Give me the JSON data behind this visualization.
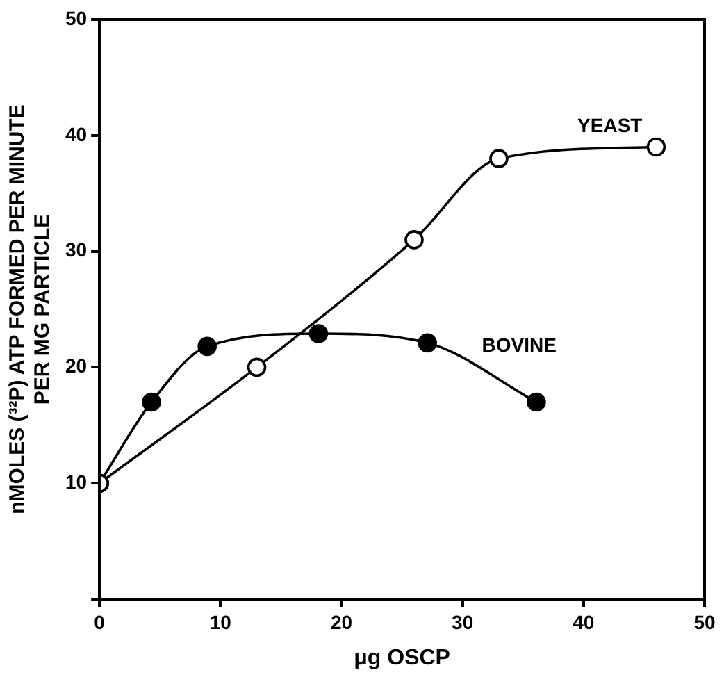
{
  "chart_data": {
    "type": "line",
    "xlabel": "μg OSCP",
    "ylabel": [
      "nMOLES (³²P) ATP FORMED PER MINUTE",
      "PER MG PARTICLE"
    ],
    "xlim": [
      0,
      50
    ],
    "xticks": [
      0,
      10,
      20,
      30,
      40,
      50
    ],
    "ylim": [
      0,
      50
    ],
    "yticks": [
      {
        "value": 0,
        "label": null
      },
      10,
      20,
      30,
      40,
      50
    ],
    "grid": false,
    "legend": false,
    "marker": "circle",
    "line_style": "solid",
    "series": [
      {
        "name": "YEAST",
        "color": "#000000",
        "colors": [
          "#ffffff",
          "#ffffff",
          "#ffffff",
          "#ffffff",
          "#ffffff"
        ],
        "x": [
          0,
          13,
          26,
          33,
          46
        ],
        "values": [
          10,
          20,
          31,
          38,
          39
        ]
      },
      {
        "name": "BOVINE",
        "color": "#000000",
        "colors": [
          "#000000",
          "#000000",
          "#000000",
          "#000000",
          "#000000",
          "#000000"
        ],
        "x": [
          0,
          4.3,
          8.9,
          18.1,
          27.1,
          36.1
        ],
        "values": [
          10,
          17,
          21.8,
          22.9,
          22.1,
          17
        ]
      }
    ]
  }
}
